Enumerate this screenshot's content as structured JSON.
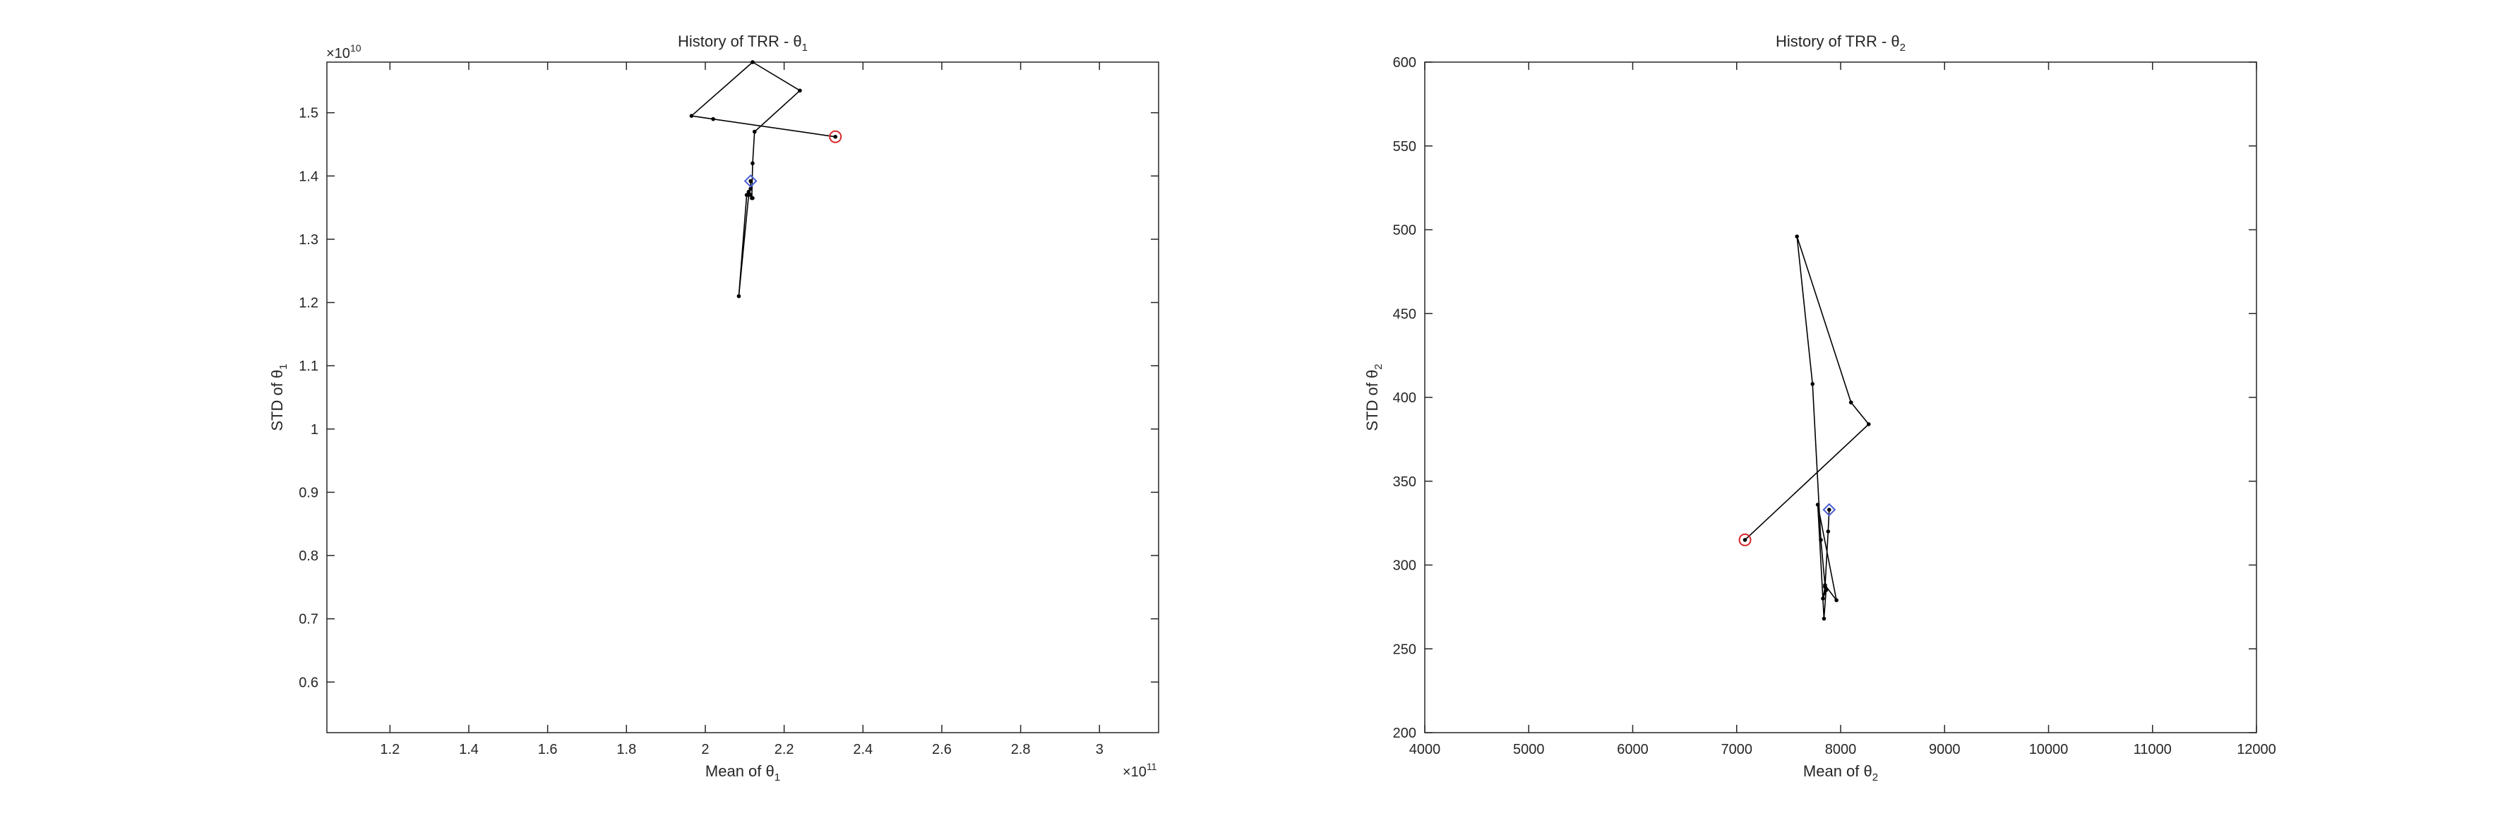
{
  "chart_data": [
    {
      "type": "line",
      "title": "History of TRR - θ",
      "title_sub": "1",
      "xlabel": "Mean of θ",
      "xlabel_sub": "1",
      "ylabel": "STD of θ",
      "ylabel_sub": "1",
      "x_exponent_prefix": "×10",
      "x_exponent": "11",
      "y_exponent_prefix": "×10",
      "y_exponent": "10",
      "xlim": [
        1.04,
        3.15
      ],
      "ylim": [
        0.52,
        1.58
      ],
      "xticks": [
        1.2,
        1.4,
        1.6,
        1.8,
        2.0,
        2.2,
        2.4,
        2.6,
        2.8,
        3.0
      ],
      "xtick_labels": [
        "1.2",
        "1.4",
        "1.6",
        "1.8",
        "2",
        "2.2",
        "2.4",
        "2.6",
        "2.8",
        "3"
      ],
      "yticks": [
        0.6,
        0.7,
        0.8,
        0.9,
        1.0,
        1.1,
        1.2,
        1.3,
        1.4,
        1.5
      ],
      "ytick_labels": [
        "0.6",
        "0.7",
        "0.8",
        "0.9",
        "1",
        "1.1",
        "1.2",
        "1.3",
        "1.4",
        "1.5"
      ],
      "grid": false,
      "start_marker": {
        "x": 2.33,
        "y": 1.462,
        "color": "#d62728",
        "shape": "circle"
      },
      "end_marker": {
        "x": 2.115,
        "y": 1.392,
        "color": "#4a5fd4",
        "shape": "diamond"
      },
      "x": [
        2.33,
        2.02,
        1.965,
        2.12,
        2.24,
        2.125,
        2.12,
        2.118,
        2.11,
        2.12,
        2.115,
        2.105,
        2.085,
        2.11,
        2.115,
        2.115
      ],
      "y": [
        1.462,
        1.49,
        1.495,
        1.58,
        1.535,
        1.47,
        1.42,
        1.365,
        1.375,
        1.365,
        1.37,
        1.37,
        1.21,
        1.37,
        1.38,
        1.392
      ]
    },
    {
      "type": "line",
      "title": "History of TRR - θ",
      "title_sub": "2",
      "xlabel": "Mean of θ",
      "xlabel_sub": "2",
      "ylabel": "STD of θ",
      "ylabel_sub": "2",
      "xlim": [
        4000,
        12000
      ],
      "ylim": [
        200,
        600
      ],
      "xticks": [
        4000,
        5000,
        6000,
        7000,
        8000,
        9000,
        10000,
        11000,
        12000
      ],
      "xtick_labels": [
        "4000",
        "5000",
        "6000",
        "7000",
        "8000",
        "9000",
        "10000",
        "11000",
        "12000"
      ],
      "yticks": [
        200,
        250,
        300,
        350,
        400,
        450,
        500,
        550,
        600
      ],
      "ytick_labels": [
        "200",
        "250",
        "300",
        "350",
        "400",
        "450",
        "500",
        "550",
        "600"
      ],
      "grid": false,
      "start_marker": {
        "x": 7080,
        "y": 315,
        "color": "#d62728",
        "shape": "circle"
      },
      "end_marker": {
        "x": 7890,
        "y": 333,
        "color": "#4a5fd4",
        "shape": "diamond"
      },
      "x": [
        7080,
        8270,
        8100,
        7580,
        7730,
        7810,
        7850,
        7960,
        7780,
        7840,
        7860,
        7830,
        7850,
        7880,
        7890
      ],
      "y": [
        315,
        384,
        397,
        496,
        408,
        315,
        288,
        279,
        336,
        268,
        285,
        280,
        287,
        320,
        333
      ]
    }
  ]
}
